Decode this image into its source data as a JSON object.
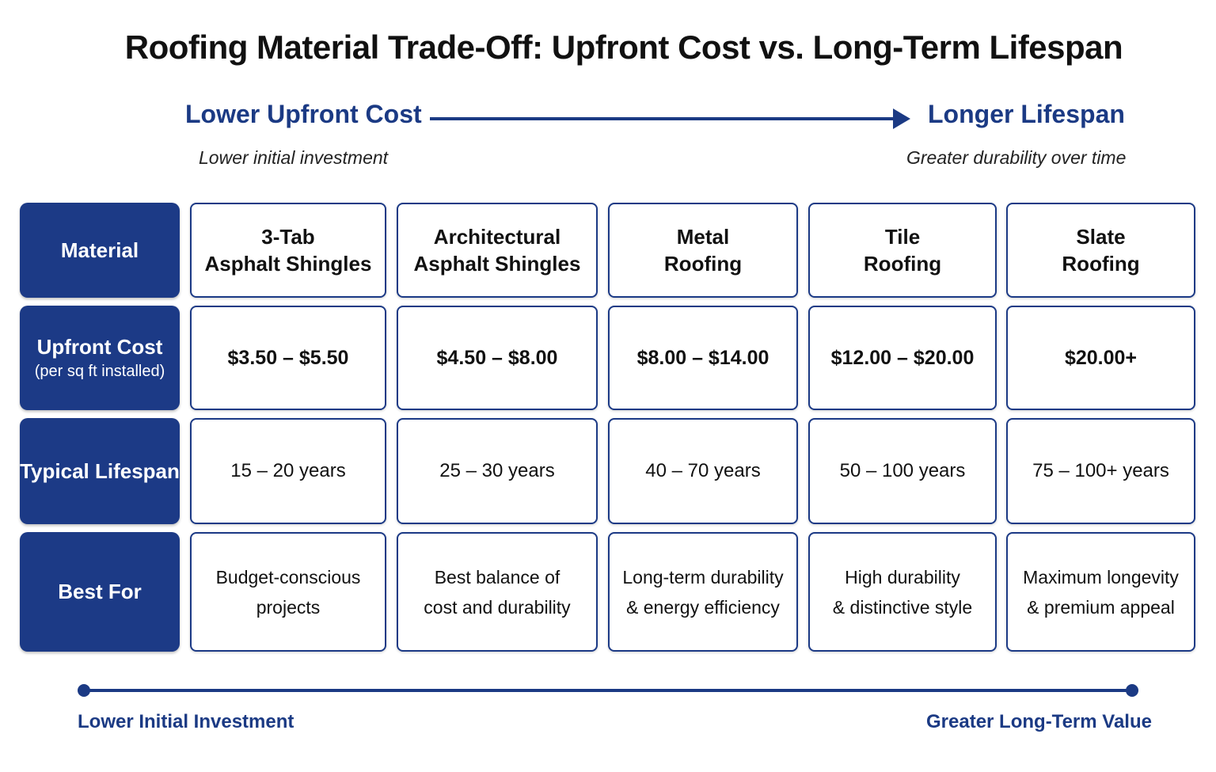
{
  "chart_data": {
    "type": "table",
    "title": "Roofing Material Trade-Off: Upfront Cost vs. Long-Term Lifespan",
    "axis": {
      "left_label": "Lower Upfront Cost",
      "left_sub": "Lower initial investment",
      "right_label": "Longer Lifespan",
      "right_sub": "Greater durability over time"
    },
    "row_headers": {
      "material": "Material",
      "cost": "Upfront Cost",
      "cost_sub": "(per sq ft installed)",
      "lifespan": "Typical Lifespan",
      "best": "Best For"
    },
    "columns": [
      {
        "material": [
          "3-Tab",
          "Asphalt Shingles"
        ],
        "cost": "$3.50 – $5.50",
        "lifespan": "15 – 20 years",
        "best": [
          "Budget-conscious",
          "projects"
        ]
      },
      {
        "material": [
          "Architectural",
          "Asphalt Shingles"
        ],
        "cost": "$4.50 – $8.00",
        "lifespan": "25 – 30 years",
        "best": [
          "Best balance of",
          "cost and durability"
        ]
      },
      {
        "material": [
          "Metal",
          "Roofing"
        ],
        "cost": "$8.00 – $14.00",
        "lifespan": "40 – 70 years",
        "best": [
          "Long-term durability",
          "& energy efficiency"
        ]
      },
      {
        "material": [
          "Tile",
          "Roofing"
        ],
        "cost": "$12.00 – $20.00",
        "lifespan": "50 – 100 years",
        "best": [
          "High durability",
          "& distinctive style"
        ]
      },
      {
        "material": [
          "Slate",
          "Roofing"
        ],
        "cost": "$20.00+",
        "lifespan": "75 – 100+ years",
        "best": [
          "Maximum longevity",
          "& premium appeal"
        ]
      }
    ],
    "bottom": {
      "left": "Lower Initial Investment",
      "right": "Greater Long-Term Value"
    }
  },
  "colors": {
    "navy": "#1c3a86",
    "accent_text": "#1b3a84"
  }
}
